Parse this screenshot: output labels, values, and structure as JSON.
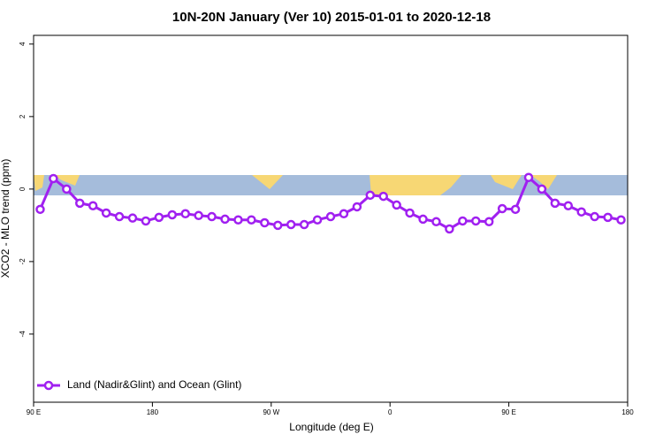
{
  "chart_data": {
    "type": "line",
    "title": "10N-20N January (Ver 10)   2015-01-01 to 2020-12-18",
    "x_label": "Longitude (deg E)",
    "y_label": "XCO2 - MLO trend (ppm)",
    "xlim": [
      90,
      540
    ],
    "xticks": [
      {
        "value": 90,
        "label": "90 E"
      },
      {
        "value": 180,
        "label": "180"
      },
      {
        "value": 270,
        "label": "90 W"
      },
      {
        "value": 360,
        "label": "0"
      },
      {
        "value": 450,
        "label": "90 E"
      },
      {
        "value": 540,
        "label": "180"
      }
    ],
    "ylim": [
      -5.88,
      4.24
    ],
    "yticks": [
      -4,
      -2,
      0,
      2,
      4
    ],
    "x": [
      95,
      105,
      115,
      125,
      135,
      145,
      155,
      165,
      175,
      185,
      195,
      205,
      215,
      225,
      235,
      245,
      255,
      265,
      275,
      285,
      295,
      305,
      315,
      325,
      335,
      345,
      355,
      365,
      375,
      385,
      395,
      405,
      415,
      425,
      435,
      445,
      455,
      465,
      475,
      485,
      495,
      505,
      515,
      525,
      535
    ],
    "series": [
      {
        "name": "Land (Nadir&Glint) and Ocean (Glint)",
        "color": "#a020f0",
        "values": [
          -0.56,
          0.29,
          0.0,
          -0.39,
          -0.46,
          -0.66,
          -0.76,
          -0.8,
          -0.88,
          -0.78,
          -0.71,
          -0.68,
          -0.73,
          -0.76,
          -0.83,
          -0.85,
          -0.85,
          -0.93,
          -1.0,
          -0.98,
          -0.98,
          -0.85,
          -0.76,
          -0.68,
          -0.49,
          -0.17,
          -0.2,
          -0.44,
          -0.66,
          -0.83,
          -0.9,
          -1.1,
          -0.88,
          -0.88,
          -0.9,
          -0.54,
          -0.56,
          0.32,
          0.0,
          -0.39,
          -0.46,
          -0.63,
          -0.76,
          -0.78,
          -0.85
        ]
      }
    ],
    "legend": "bottom-left"
  }
}
